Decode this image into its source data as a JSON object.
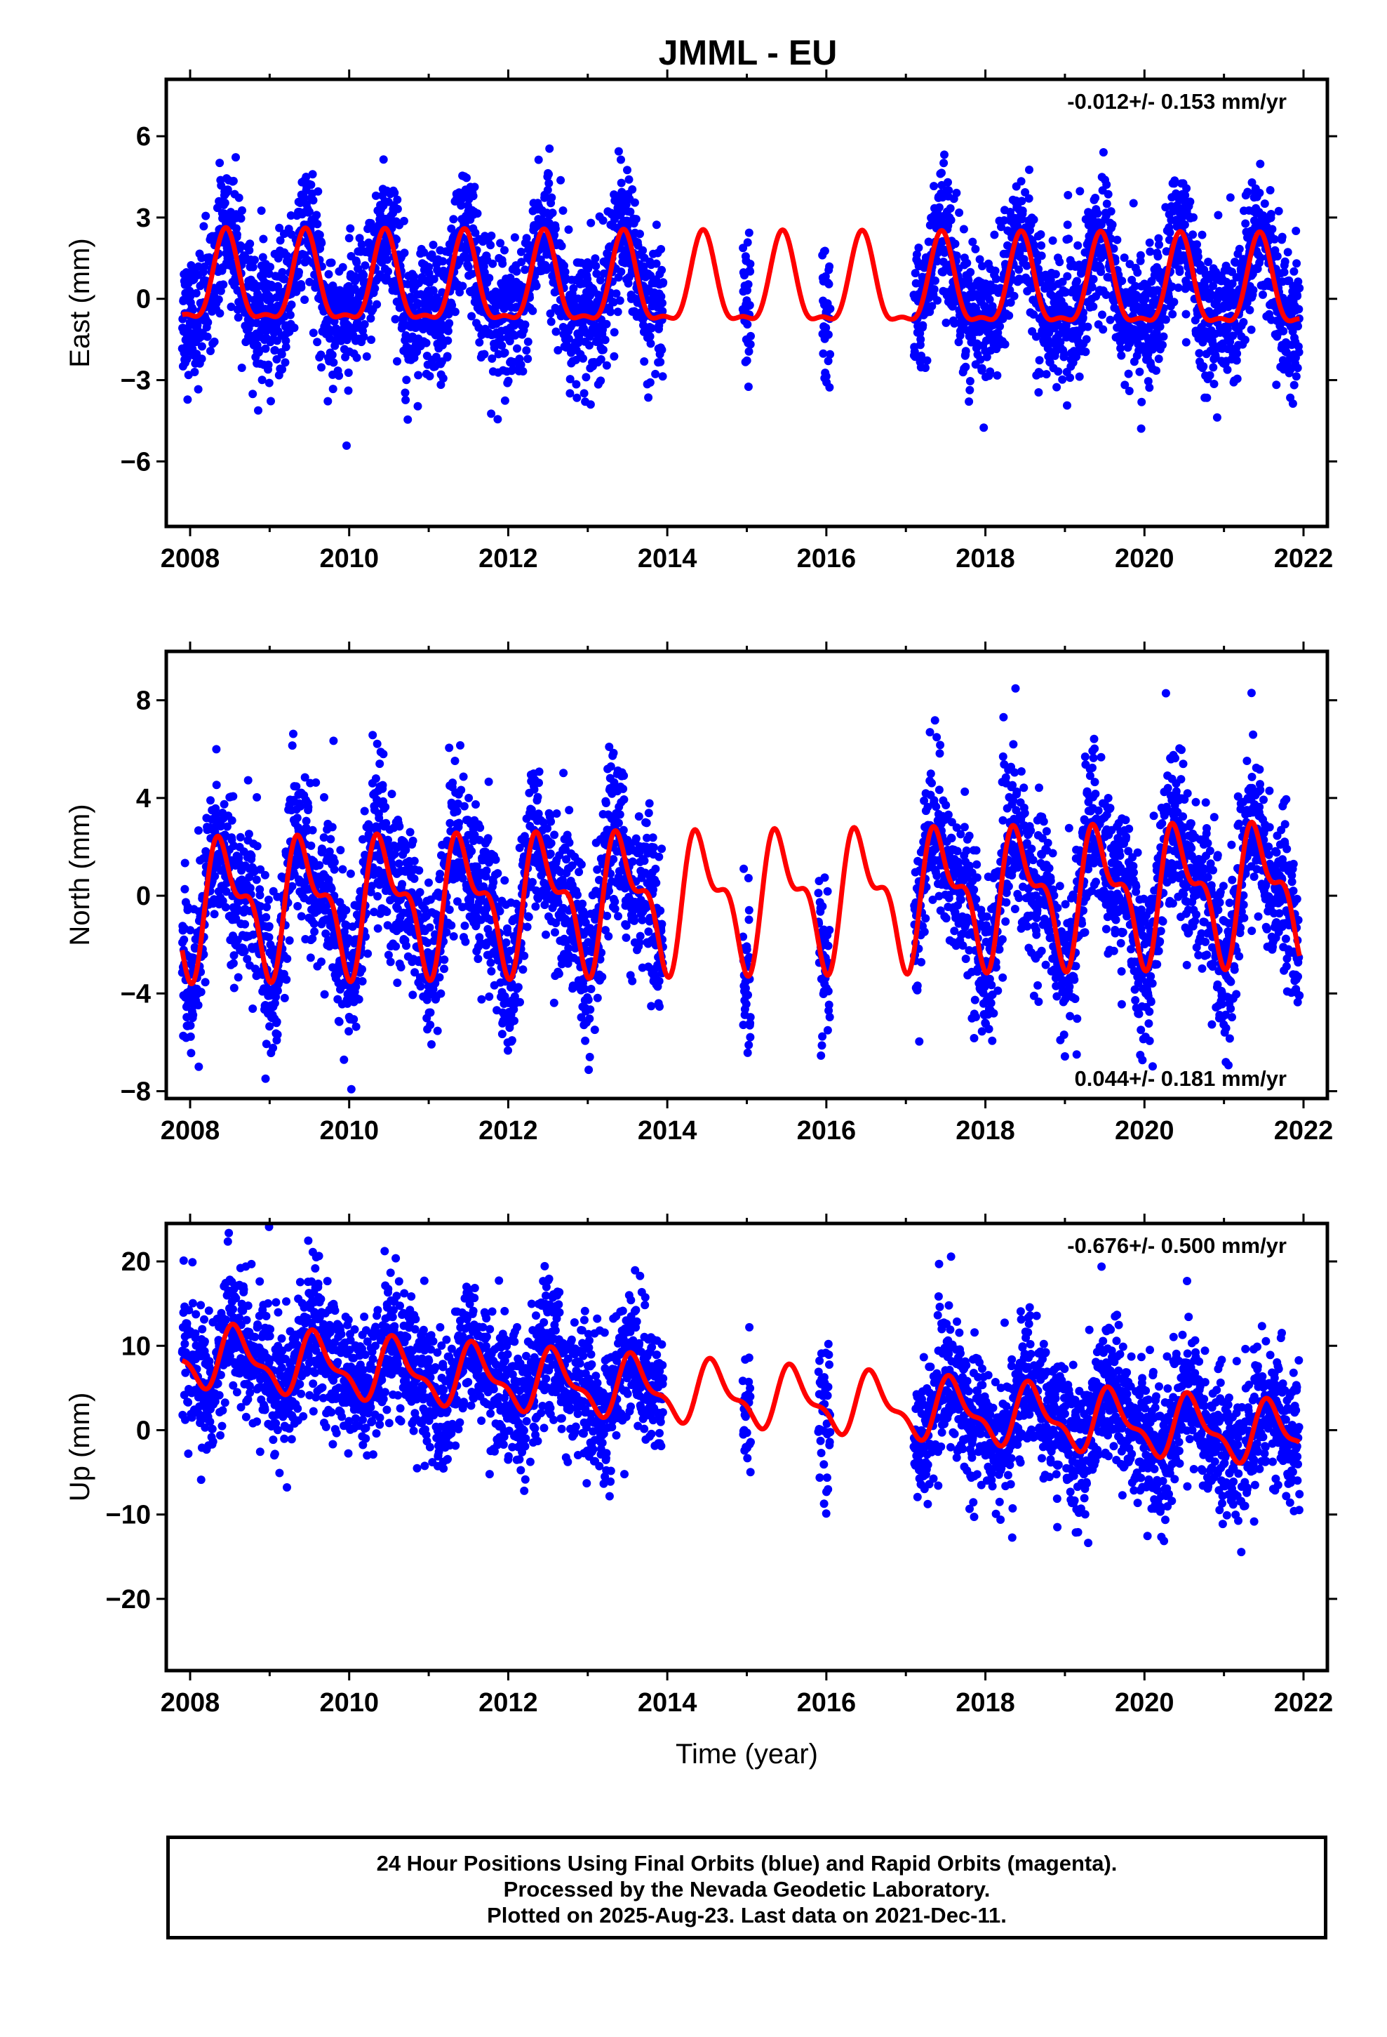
{
  "title": "JMML - EU",
  "footer": {
    "line1": "24 Hour Positions Using Final Orbits (blue) and Rapid Orbits (magenta).",
    "line2": "Processed by the Nevada Geodetic Laboratory.",
    "line3": "Plotted on 2025-Aug-23. Last data on 2021-Dec-11."
  },
  "colors": {
    "points": "#0000ff",
    "model": "#ff0000",
    "frame": "#000000"
  },
  "chart_data": [
    {
      "type": "scatter",
      "ylabel": "East (mm)",
      "xlabel": "",
      "xlim": [
        2007.7,
        2022.3
      ],
      "ylim": [
        -8.4,
        8.1
      ],
      "xticks": [
        2008,
        2010,
        2012,
        2014,
        2016,
        2018,
        2020,
        2022
      ],
      "yticks": [
        -6,
        -3,
        0,
        3,
        6
      ],
      "ytick_labels": [
        "−6",
        "−3",
        "0",
        "3",
        "6"
      ],
      "rate_label": "-0.012+/- 0.153 mm/yr",
      "rate_position": "top-right",
      "model": {
        "mean": 0.4,
        "trend": -0.012,
        "annual_amp": 1.6,
        "annual_peak": 0.45,
        "semiannual_amp": 0.55,
        "semiannual_peak": 0.45
      },
      "scatter_sigma": 1.2,
      "data_segments": [
        [
          2007.9,
          2013.95
        ],
        [
          2014.95,
          2015.05
        ],
        [
          2015.95,
          2016.05
        ],
        [
          2017.1,
          2021.95
        ]
      ]
    },
    {
      "type": "scatter",
      "ylabel": "North (mm)",
      "xlabel": "",
      "xlim": [
        2007.7,
        2022.3
      ],
      "ylim": [
        -8.3,
        10.0
      ],
      "xticks": [
        2008,
        2010,
        2012,
        2014,
        2016,
        2018,
        2020,
        2022
      ],
      "yticks": [
        -8,
        -4,
        0,
        4,
        8
      ],
      "ytick_labels": [
        "−8",
        "−4",
        "0",
        "4",
        "8"
      ],
      "rate_label": "0.044+/- 0.181 mm/yr",
      "rate_position": "bottom-right",
      "model": {
        "mean": -0.1,
        "trend": 0.044,
        "annual_amp": 2.3,
        "annual_peak": 0.45,
        "semiannual_amp": 1.2,
        "semiannual_peak": 0.3
      },
      "scatter_sigma": 1.6,
      "data_segments": [
        [
          2007.9,
          2013.95
        ],
        [
          2014.95,
          2015.05
        ],
        [
          2015.9,
          2016.05
        ],
        [
          2017.1,
          2021.95
        ]
      ]
    },
    {
      "type": "scatter",
      "ylabel": "Up (mm)",
      "xlabel": "Time (year)",
      "xlim": [
        2007.7,
        2022.3
      ],
      "ylim": [
        -28.5,
        24.5
      ],
      "xticks": [
        2008,
        2010,
        2012,
        2014,
        2016,
        2018,
        2020,
        2022
      ],
      "yticks": [
        -20,
        -10,
        0,
        10,
        20
      ],
      "ytick_labels": [
        "−20",
        "−10",
        "0",
        "10",
        "20"
      ],
      "rate_label": "-0.676+/- 0.500 mm/yr",
      "rate_position": "top-right",
      "model": {
        "mean": 4.0,
        "trend": -0.676,
        "annual_amp": 3.2,
        "annual_peak": 0.6,
        "semiannual_amp": 1.4,
        "semiannual_peak": 0.5
      },
      "scatter_sigma": 4.0,
      "data_segments": [
        [
          2007.9,
          2013.95
        ],
        [
          2014.95,
          2015.05
        ],
        [
          2015.9,
          2016.05
        ],
        [
          2017.1,
          2021.95
        ]
      ]
    }
  ]
}
